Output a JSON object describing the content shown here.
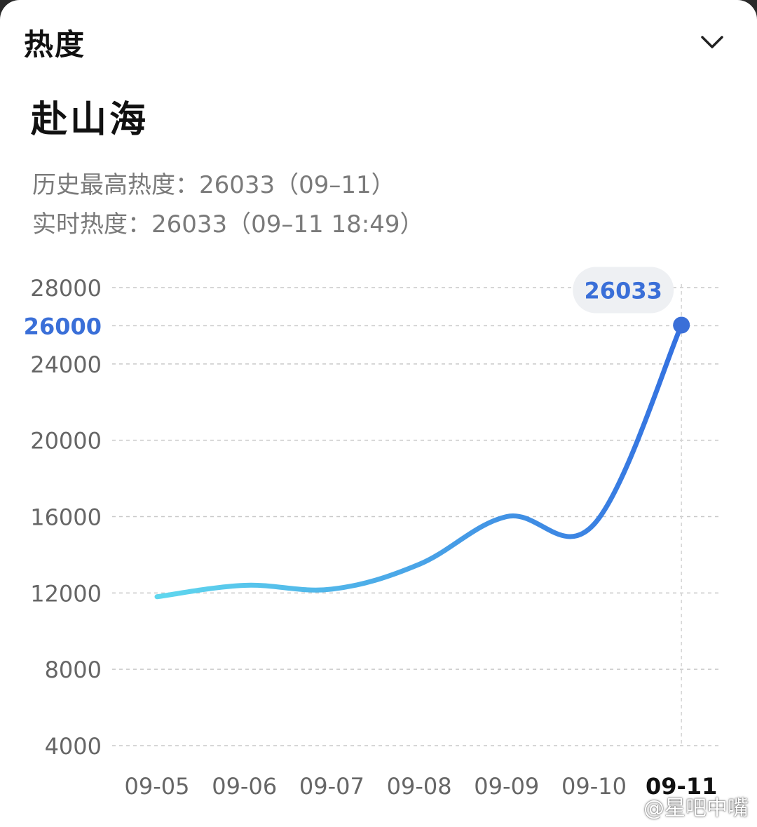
{
  "header": {
    "section_title": "热度",
    "collapse_icon": "chevron-down-icon"
  },
  "topic": {
    "title": "赴山海"
  },
  "stats": {
    "history_peak_line": "历史最高热度：26033（09–11）",
    "realtime_line": "实时热度：26033（09–11 18:49）"
  },
  "chart_data": {
    "type": "line",
    "categories": [
      "09-05",
      "09-06",
      "09-07",
      "09-08",
      "09-09",
      "09-10",
      "09-11"
    ],
    "values": [
      11800,
      12400,
      12200,
      13500,
      16000,
      15600,
      26033
    ],
    "y_ticks": [
      "28000",
      "26000",
      "24000",
      "20000",
      "16000",
      "12000",
      "8000",
      "4000"
    ],
    "highlight_tick": "26000",
    "ylim": [
      4000,
      28000
    ],
    "tooltip_value": "26033",
    "highlight_category": "09-11",
    "grid": true,
    "line_color_start": "#5fd7ee",
    "line_color_end": "#3370e0",
    "highlight_color": "#3a6fd8",
    "title": "",
    "xlabel": "",
    "ylabel": ""
  },
  "watermark": {
    "text": "@星吧中嘴",
    "icon": "weibo-icon"
  }
}
